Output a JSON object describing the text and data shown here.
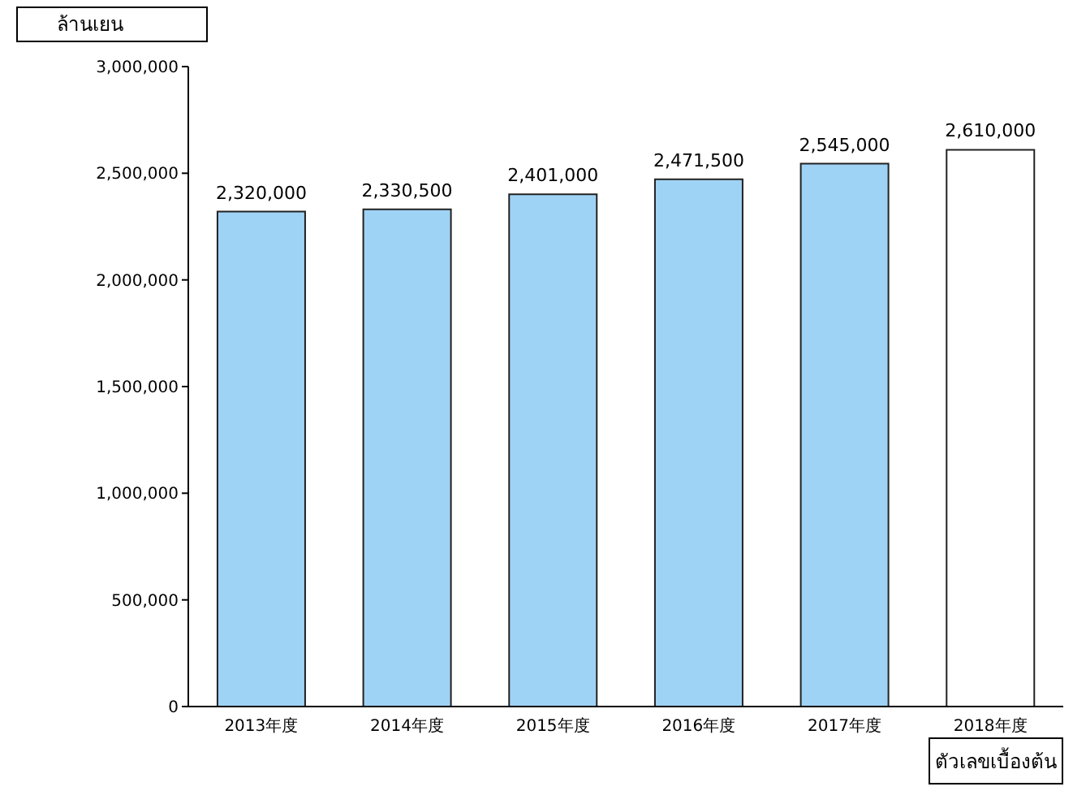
{
  "chart_data": {
    "type": "bar",
    "ylabel": "ล้านเยน",
    "categories": [
      "2013年度",
      "2014年度",
      "2015年度",
      "2016年度",
      "2017年度",
      "2018年度"
    ],
    "values": [
      2320000,
      2330500,
      2401000,
      2471500,
      2545000,
      2610000
    ],
    "value_labels": [
      "2,320,000",
      "2,330,500",
      "2,401,000",
      "2,471,500",
      "2,545,000",
      "2,610,000"
    ],
    "colors": [
      "#9fd3f5",
      "#9fd3f5",
      "#9fd3f5",
      "#9fd3f5",
      "#9fd3f5",
      "#ffffff"
    ],
    "ylim": [
      0,
      3000000
    ],
    "yticks": [
      {
        "value": 0,
        "label": "0"
      },
      {
        "value": 500000,
        "label": "500,000"
      },
      {
        "value": 1000000,
        "label": "1,000,000"
      },
      {
        "value": 1500000,
        "label": "1,500,000"
      },
      {
        "value": 2000000,
        "label": "2,000,000"
      },
      {
        "value": 2500000,
        "label": "2,500,000"
      },
      {
        "value": 3000000,
        "label": "3,000,000"
      }
    ],
    "grid": false,
    "legend": false,
    "annotations": [
      "ตัวเลขเบื้องต้น"
    ]
  }
}
